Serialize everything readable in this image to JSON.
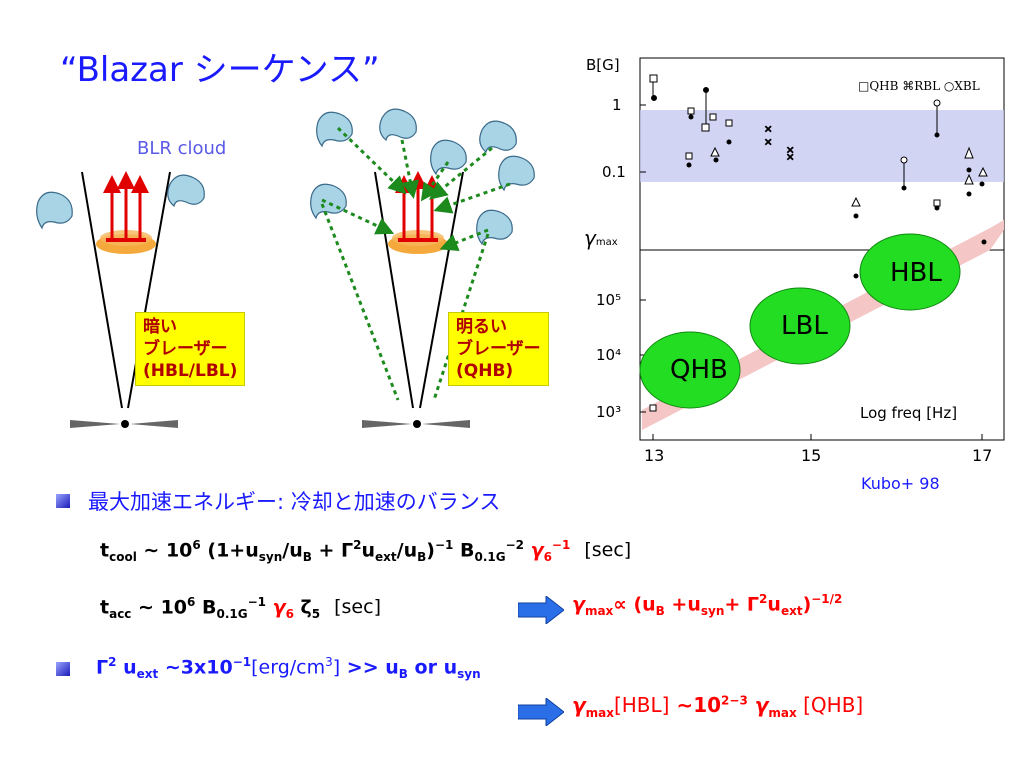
{
  "title": "“Blazar シーケンス”",
  "blr_label": "BLR cloud",
  "dark_box": [
    "暗い",
    "ブレーザー",
    "(HBL/LBL)"
  ],
  "bright_box": [
    "明るい",
    "ブレーザー",
    "(QHB)"
  ],
  "plot": {
    "top_ylabel": "B[G]",
    "top_yticks": [
      "1",
      "0.1"
    ],
    "legend": "□QHB ⌘RBL ○XBL",
    "bottom_ylabel": "γ",
    "bottom_ylabel_sub": "max",
    "bottom_yticks": [
      "10⁵",
      "10⁴",
      "10³"
    ],
    "xlabel": "Log freq [Hz]",
    "xticks": [
      "13",
      "15",
      "17"
    ],
    "ellipses": [
      "QHB",
      "LBL",
      "HBL"
    ],
    "credit": "Kubo+ 98"
  },
  "bullet1": "最大加速エネルギー: 冷却と加速のバランス",
  "eq1": {
    "t": "t",
    "t_sub": "cool",
    "body1": " ∼ 10",
    "exp1": "6",
    "body2": " (1+u",
    "s1": "syn",
    "body3": "/u",
    "s2": "B",
    "body4": " + Γ",
    "exp2": "2",
    "body5": "u",
    "s3": "ext",
    "body6": "/u",
    "s4": "B",
    "body7": ")",
    "exp3": "−1",
    "body8": " B",
    "s5": "0.1G",
    "exp4": "−2",
    "gamma": " γ",
    "g_sub": "6",
    "g_exp": "−1",
    "unit": "[sec]"
  },
  "eq2": {
    "t": "t",
    "t_sub": "acc",
    "body1": " ∼ 10",
    "exp1": "6",
    "body2": " B",
    "s1": "0.1G",
    "exp2": "−1",
    "gamma": " γ",
    "g_sub": "6",
    "zeta": " ζ",
    "z_sub": "5",
    "unit": "[sec]"
  },
  "prop": {
    "gamma": "γ",
    "sub": "max",
    "body1": "∝ (u",
    "s1": "B",
    "body2": " +u",
    "s2": "syn",
    "body3": "+ Γ",
    "exp1": "2",
    "body4": "u",
    "s3": "ext",
    "body5": ")",
    "exp2": "−1/2"
  },
  "bullet2": {
    "g": "Γ",
    "g_exp": "2",
    "u": " u",
    "u_sub": "ext",
    "mid": " ∼3x10",
    "exp": "−1",
    "unit": "[erg/cm",
    "unit_exp": "3",
    "unit_end": "]",
    "rest": " >> u",
    "rest_sub": "B",
    "or": " or u",
    "or_sub": "syn"
  },
  "result": {
    "g1": "γ",
    "g1_sub": "max",
    "hbl": "[HBL]",
    "mid": " ∼10",
    "exp": "2−3",
    "g2": " γ",
    "g2_sub": "max",
    "qhb": " [QHB]"
  }
}
